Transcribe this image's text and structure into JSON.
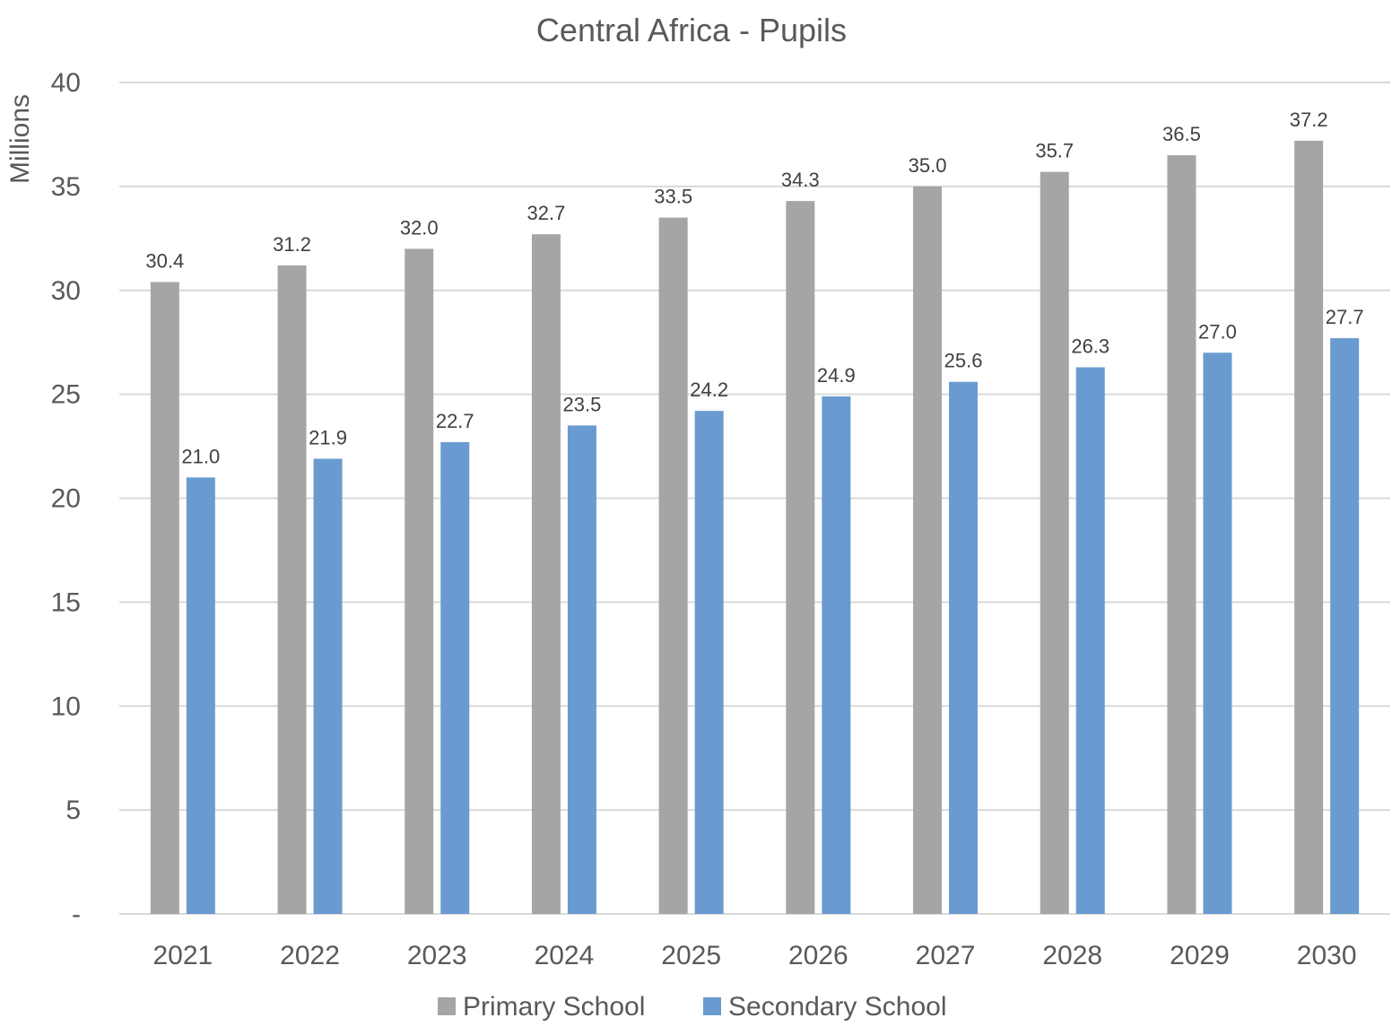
{
  "chart_data": {
    "type": "bar",
    "title": "Central Africa - Pupils",
    "ylabel": "Millions",
    "xlabel": "",
    "categories": [
      "2021",
      "2022",
      "2023",
      "2024",
      "2025",
      "2026",
      "2027",
      "2028",
      "2029",
      "2030"
    ],
    "series": [
      {
        "name": "Primary School",
        "color": "#A5A5A5",
        "values": [
          30.4,
          31.2,
          32.0,
          32.7,
          33.5,
          34.3,
          35.0,
          35.7,
          36.5,
          37.2
        ],
        "labels": [
          "30.4",
          "31.2",
          "32.0",
          "32.7",
          "33.5",
          "34.3",
          "35.0",
          "35.7",
          "36.5",
          "37.2"
        ]
      },
      {
        "name": "Secondary School",
        "color": "#6A9BD0",
        "values": [
          21.0,
          21.9,
          22.7,
          23.5,
          24.2,
          24.9,
          25.6,
          26.3,
          27.0,
          27.7
        ],
        "labels": [
          "21.0",
          "21.9",
          "22.7",
          "23.5",
          "24.2",
          "24.9",
          "25.6",
          "26.3",
          "27.0",
          "27.7"
        ]
      }
    ],
    "ylim": [
      0,
      40
    ],
    "yticks": [
      {
        "value": 0,
        "label": "-"
      },
      {
        "value": 5,
        "label": "5"
      },
      {
        "value": 10,
        "label": "10"
      },
      {
        "value": 15,
        "label": "15"
      },
      {
        "value": 20,
        "label": "20"
      },
      {
        "value": 25,
        "label": "25"
      },
      {
        "value": 30,
        "label": "30"
      },
      {
        "value": 35,
        "label": "35"
      },
      {
        "value": 40,
        "label": "40"
      }
    ],
    "grid": true,
    "legend_position": "bottom",
    "gridline_color": "#D9D9D9"
  }
}
